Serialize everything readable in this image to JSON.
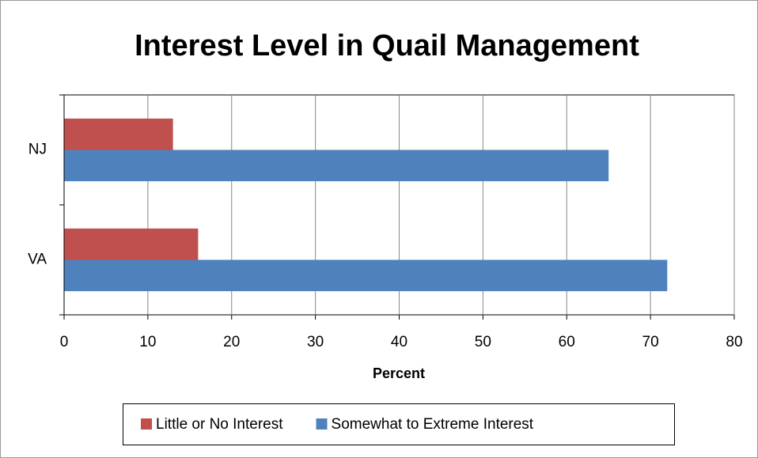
{
  "chart_data": {
    "type": "hbar",
    "title": "Interest Level in Quail Management",
    "x_label": "Percent",
    "categories": [
      "NJ",
      "VA"
    ],
    "series": [
      {
        "name": "Little or No Interest",
        "color": "#c0504d",
        "values": [
          13,
          16
        ]
      },
      {
        "name": "Somewhat to Extreme Interest",
        "color": "#4f81bd",
        "values": [
          65,
          72
        ]
      }
    ],
    "xlim": [
      0,
      80
    ],
    "xticks": [
      0,
      10,
      20,
      30,
      40,
      50,
      60,
      70,
      80
    ],
    "grid": true,
    "legend": "bottom"
  }
}
